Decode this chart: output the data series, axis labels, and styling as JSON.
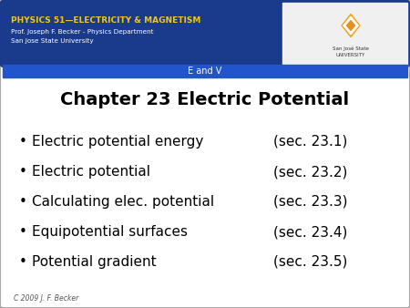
{
  "title": "Chapter 23 Electric Potential",
  "header_title": "PHYSICS 51—ELECTRICITY & MAGNETISM",
  "header_sub1": "Prof. Joseph F. Becker - Physics Department",
  "header_sub2": "San Jose State University",
  "banner_text": "E and V",
  "copyright": "C 2009 J. F. Becker",
  "bullet_items": [
    [
      "Electric potential energy",
      "(sec. 23.1)"
    ],
    [
      "Electric potential",
      "(sec. 23.2)"
    ],
    [
      "Calculating elec. potential",
      "(sec. 23.3)"
    ],
    [
      "Equipotential surfaces",
      "(sec. 23.4)"
    ],
    [
      "Potential gradient",
      "(sec. 23.5)"
    ]
  ],
  "bg_color": "#ffffff",
  "header_bg_color": "#1a3a8c",
  "banner_bg_color": "#2255cc",
  "outer_border_color": "#aaaaaa",
  "title_color": "#000000",
  "header_text_color": "#ffffff",
  "header_title_color": "#f5c518",
  "banner_text_color": "#ffffff",
  "bullet_color": "#000000",
  "copyright_color": "#555555",
  "logo_colors": [
    "#f5a623",
    "#e8901a",
    "#d4771a"
  ]
}
